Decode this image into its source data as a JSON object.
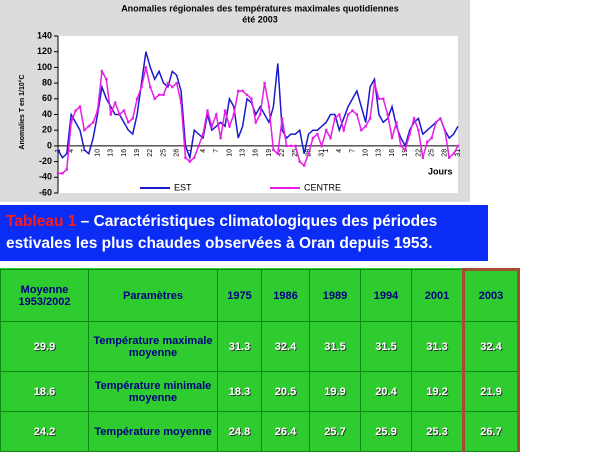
{
  "chart_data": {
    "type": "line",
    "title": "Anomalies régionales des températures maximales quotidiennes",
    "subtitle": "été 2003",
    "ylabel": "Anomalies T en 1/10°C",
    "xlabel": "Jours",
    "ylim": [
      -60,
      140
    ],
    "yticks": [
      -60,
      -40,
      -20,
      0,
      20,
      40,
      60,
      80,
      100,
      120,
      140
    ],
    "legend": "bottom",
    "categories": [
      "1",
      null,
      null,
      "4",
      null,
      null,
      "7",
      null,
      null,
      "10",
      null,
      null,
      "13",
      null,
      null,
      "16",
      null,
      null,
      "19",
      null,
      null,
      "22",
      null,
      null,
      "25",
      null,
      null,
      "28",
      null,
      null,
      "1",
      null,
      null,
      "4",
      null,
      null,
      "7",
      null,
      null,
      "10",
      null,
      null,
      "13",
      null,
      null,
      "16",
      null,
      null,
      "19",
      null,
      null,
      "22",
      null,
      null,
      "25",
      null,
      null,
      "28",
      null,
      null,
      "31",
      "1",
      null,
      null,
      "4",
      null,
      null,
      "7",
      null,
      null,
      "10",
      null,
      null,
      "13",
      null,
      null,
      "16",
      null,
      null,
      "19",
      null,
      null,
      "22",
      null,
      null,
      "25",
      null,
      null,
      "28",
      null,
      null,
      "31"
    ],
    "series": [
      {
        "name": "EST",
        "color": "#1a1acc",
        "values": [
          -5,
          -15,
          -10,
          40,
          30,
          20,
          -5,
          -10,
          10,
          40,
          75,
          60,
          50,
          40,
          40,
          30,
          20,
          15,
          40,
          80,
          120,
          100,
          85,
          95,
          80,
          75,
          95,
          90,
          70,
          0,
          -15,
          20,
          15,
          10,
          40,
          20,
          25,
          30,
          25,
          60,
          50,
          10,
          25,
          60,
          55,
          40,
          50,
          40,
          30,
          50,
          105,
          20,
          10,
          15,
          15,
          20,
          -10,
          15,
          20,
          20,
          25,
          30,
          40,
          40,
          20,
          35,
          50,
          60,
          70,
          50,
          30,
          75,
          85,
          40,
          30,
          35,
          50,
          25,
          10,
          0,
          20,
          30,
          35,
          15,
          20,
          25,
          30,
          35,
          20,
          10,
          15,
          25
        ]
      },
      {
        "name": "CENTRE",
        "color": "#e61ee6",
        "values": [
          -35,
          -35,
          -30,
          30,
          45,
          50,
          20,
          25,
          30,
          45,
          95,
          85,
          40,
          55,
          40,
          45,
          30,
          35,
          60,
          75,
          100,
          75,
          60,
          65,
          65,
          80,
          75,
          80,
          55,
          -15,
          -20,
          -15,
          0,
          15,
          45,
          25,
          40,
          10,
          45,
          25,
          40,
          70,
          70,
          65,
          60,
          30,
          40,
          80,
          50,
          -5,
          -10,
          35,
          0,
          0,
          0,
          -20,
          -25,
          -10,
          10,
          15,
          0,
          20,
          10,
          35,
          40,
          20,
          40,
          45,
          40,
          20,
          25,
          35,
          80,
          60,
          60,
          40,
          10,
          30,
          0,
          -5,
          15,
          35,
          20,
          -15,
          5,
          10,
          30,
          35,
          20,
          -15,
          -10,
          0
        ]
      }
    ]
  },
  "caption": {
    "label": "Tableau 1",
    "text": " – Caractéristiques climatologiques des périodes estivales les plus chaudes observées à Oran depuis 1953."
  },
  "table": {
    "header": [
      "Moyenne 1953/2002",
      "Paramètres",
      "1975",
      "1986",
      "1989",
      "1994",
      "2001",
      "2003"
    ],
    "rows": [
      [
        "29.9",
        "Température maximale moyenne",
        "31.3",
        "32.4",
        "31.5",
        "31.5",
        "31.3",
        "32.4"
      ],
      [
        "18.6",
        "Température minimale moyenne",
        "18.3",
        "20.5",
        "19.9",
        "20.4",
        "19.2",
        "21.9"
      ],
      [
        "24.2",
        "Température moyenne",
        "24.8",
        "26.4",
        "25.7",
        "25.9",
        "25.3",
        "26.7"
      ]
    ]
  }
}
